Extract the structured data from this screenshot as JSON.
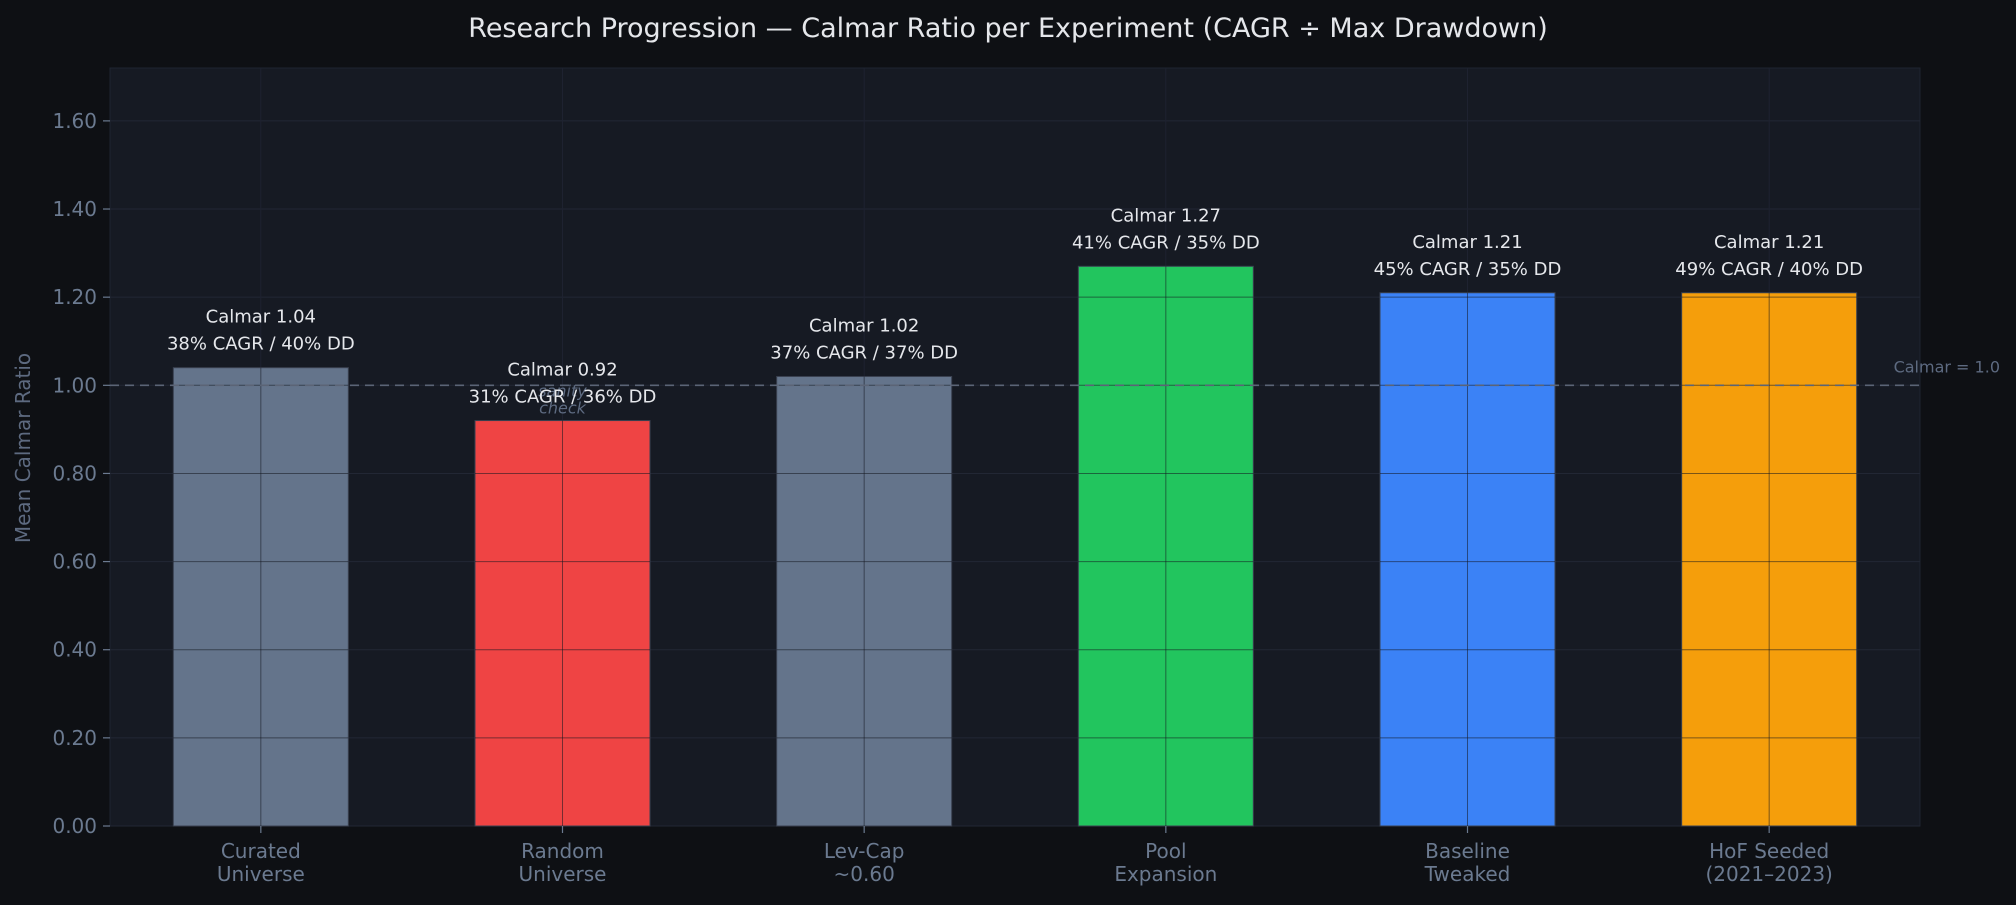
{
  "chart_data": {
    "type": "bar",
    "title": "Research Progression — Calmar Ratio per Experiment  (CAGR ÷ Max Drawdown)",
    "xlabel": "",
    "ylabel": "Mean Calmar Ratio",
    "ylim": [
      0,
      1.72
    ],
    "yticks": [
      "0.00",
      "0.20",
      "0.40",
      "0.60",
      "0.80",
      "1.00",
      "1.20",
      "1.40",
      "1.60"
    ],
    "grid": true,
    "categories": [
      [
        "Curated",
        "Universe"
      ],
      [
        "Random",
        "Universe"
      ],
      [
        "Lev-Cap",
        "~0.60"
      ],
      [
        "Pool",
        "Expansion"
      ],
      [
        "Baseline",
        "Tweaked"
      ],
      [
        "HoF Seeded",
        "(2021–2023)"
      ]
    ],
    "values": [
      1.04,
      0.92,
      1.02,
      1.27,
      1.21,
      1.21
    ],
    "bar_labels": [
      [
        "Calmar 1.04",
        "38% CAGR / 40% DD"
      ],
      [
        "Calmar 0.92",
        "31% CAGR / 36% DD"
      ],
      [
        "Calmar 1.02",
        "37% CAGR / 37% DD"
      ],
      [
        "Calmar 1.27",
        "41% CAGR / 35% DD"
      ],
      [
        "Calmar 1.21",
        "45% CAGR / 35% DD"
      ],
      [
        "Calmar 1.21",
        "49% CAGR / 40% DD"
      ]
    ],
    "colors": [
      "#64748b",
      "#ef4444",
      "#64748b",
      "#22c55e",
      "#3b82f6",
      "#f59e0b"
    ],
    "reference_line": {
      "value": 1.0,
      "label": "Calmar = 1.0"
    },
    "annotations": [
      {
        "category_index": 1,
        "lines": [
          "sanity",
          "check"
        ]
      }
    ]
  },
  "colors": {
    "background": "#0e1014",
    "plot_background": "#161a23",
    "text": "#e5e7eb",
    "muted_text": "#6b7a90"
  }
}
